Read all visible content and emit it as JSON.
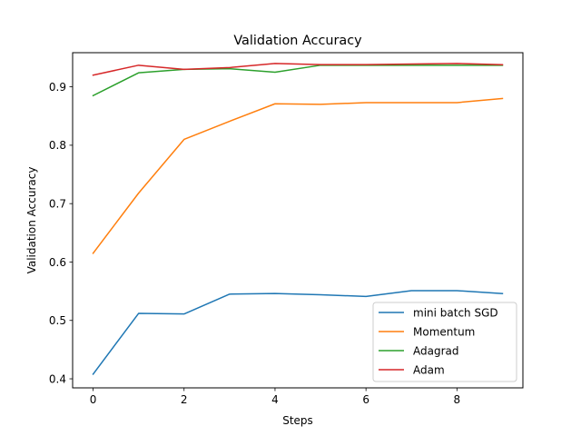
{
  "chart_data": {
    "type": "line",
    "title": "Validation Accuracy",
    "xlabel": "Steps",
    "ylabel": "Validation Accuracy",
    "x": [
      0,
      1,
      2,
      3,
      4,
      5,
      6,
      7,
      8,
      9
    ],
    "xlim": [
      -0.45,
      9.45
    ],
    "ylim": [
      0.3845,
      0.9585
    ],
    "xticks": [
      0,
      2,
      4,
      6,
      8
    ],
    "xtick_labels": [
      "0",
      "2",
      "4",
      "6",
      "8"
    ],
    "yticks": [
      0.4,
      0.5,
      0.6,
      0.7,
      0.8,
      0.9
    ],
    "ytick_labels": [
      "0.4",
      "0.5",
      "0.6",
      "0.7",
      "0.8",
      "0.9"
    ],
    "grid": false,
    "legend_position": "lower-right",
    "series": [
      {
        "name": "mini batch SGD",
        "color": "#1f77b4",
        "values": [
          0.408,
          0.512,
          0.511,
          0.545,
          0.546,
          0.544,
          0.541,
          0.551,
          0.551,
          0.546
        ]
      },
      {
        "name": "Momentum",
        "color": "#ff7f0e",
        "values": [
          0.615,
          0.718,
          0.81,
          0.841,
          0.871,
          0.87,
          0.873,
          0.873,
          0.873,
          0.88
        ]
      },
      {
        "name": "Adagrad",
        "color": "#2ca02c",
        "values": [
          0.885,
          0.924,
          0.93,
          0.931,
          0.925,
          0.937,
          0.937,
          0.937,
          0.937,
          0.937
        ]
      },
      {
        "name": "Adam",
        "color": "#d62728",
        "values": [
          0.92,
          0.937,
          0.93,
          0.933,
          0.94,
          0.938,
          0.938,
          0.939,
          0.94,
          0.938
        ]
      }
    ]
  }
}
